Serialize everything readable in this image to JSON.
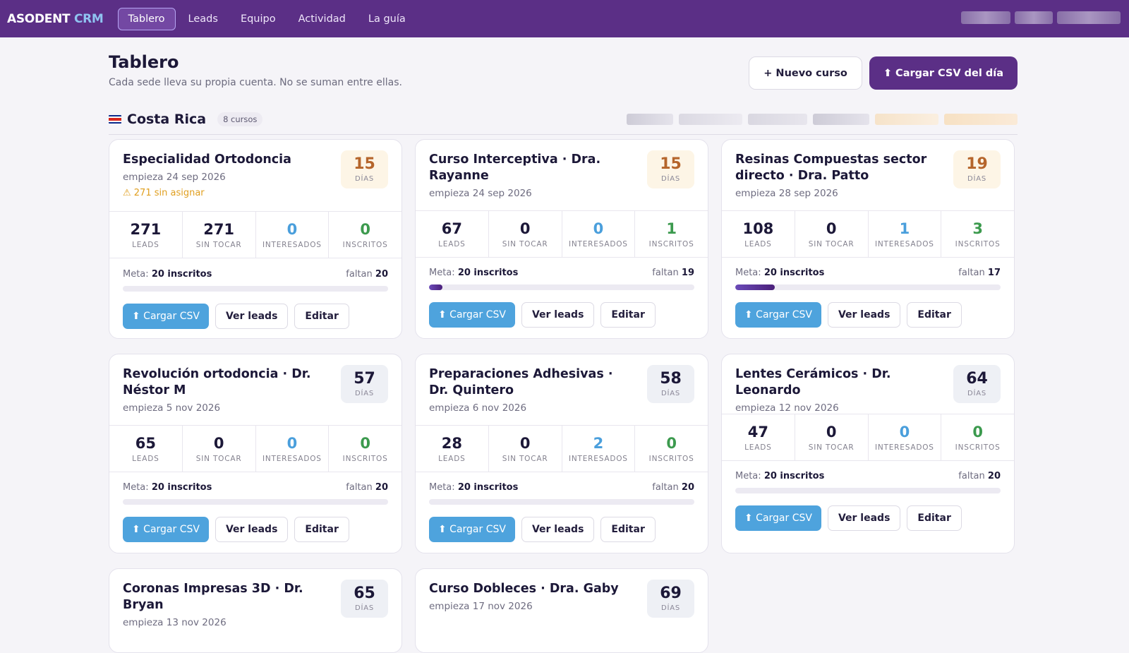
{
  "nav": {
    "brand_main": "ASODENT",
    "brand_accent": "CRM",
    "links": [
      "Tablero",
      "Leads",
      "Equipo",
      "Actividad",
      "La guía"
    ],
    "active_index": 0
  },
  "header": {
    "title": "Tablero",
    "subtitle": "Cada sede lleva su propia cuenta. No se suman entre ellas.",
    "new_course_label": "+ Nuevo curso",
    "upload_label": "⬆ Cargar CSV del día"
  },
  "region": {
    "name": "Costa Rica",
    "count": "8 cursos"
  },
  "labels": {
    "days": "DÍAS",
    "leads": "LEADS",
    "untouched": "SIN TOCAR",
    "interested": "INTERESADOS",
    "enrolled": "INSCRITOS",
    "goal_prefix": "Meta:",
    "goal_value": "20 inscritos",
    "remaining_prefix": "faltan",
    "csv_button": "⬆ Cargar CSV",
    "leads_button": "Ver leads",
    "edit_button": "Editar"
  },
  "courses": [
    {
      "title": "Especialidad Ortodoncia",
      "date": "empieza 24 sep 2026",
      "warning": "⚠ 271 sin asignar",
      "days": "15",
      "tone": "warm",
      "leads": "271",
      "untouched": "271",
      "interested": "0",
      "enrolled": "0",
      "remaining": "20",
      "progress": 0
    },
    {
      "title": "Curso Interceptiva · Dra. Rayanne",
      "date": "empieza 24 sep 2026",
      "warning": "",
      "days": "15",
      "tone": "warm",
      "leads": "67",
      "untouched": "0",
      "interested": "0",
      "enrolled": "1",
      "remaining": "19",
      "progress": 0.05
    },
    {
      "title": "Resinas Compuestas sector directo · Dra. Patto",
      "date": "empieza 28 sep 2026",
      "warning": "",
      "days": "19",
      "tone": "warm",
      "leads": "108",
      "untouched": "0",
      "interested": "1",
      "enrolled": "3",
      "remaining": "17",
      "progress": 0.15
    },
    {
      "title": "Revolución ortodoncia · Dr. Néstor M",
      "date": "empieza 5 nov 2026",
      "warning": "",
      "days": "57",
      "tone": "cool",
      "leads": "65",
      "untouched": "0",
      "interested": "0",
      "enrolled": "0",
      "remaining": "20",
      "progress": 0
    },
    {
      "title": "Preparaciones Adhesivas · Dr. Quintero",
      "date": "empieza 6 nov 2026",
      "warning": "",
      "days": "58",
      "tone": "cool",
      "leads": "28",
      "untouched": "0",
      "interested": "2",
      "enrolled": "0",
      "remaining": "20",
      "progress": 0
    },
    {
      "title": "Lentes Cerámicos · Dr. Leonardo",
      "date": "empieza 12 nov 2026",
      "warning": "",
      "days": "64",
      "tone": "cool",
      "leads": "47",
      "untouched": "0",
      "interested": "0",
      "enrolled": "0",
      "remaining": "20",
      "progress": 0
    },
    {
      "title": "Coronas Impresas 3D · Dr. Bryan",
      "date": "empieza 13 nov 2026",
      "warning": "",
      "days": "65",
      "tone": "cool"
    },
    {
      "title": "Curso Dobleces · Dra. Gaby",
      "date": "empieza 17 nov 2026",
      "warning": "",
      "days": "69",
      "tone": "cool"
    }
  ]
}
